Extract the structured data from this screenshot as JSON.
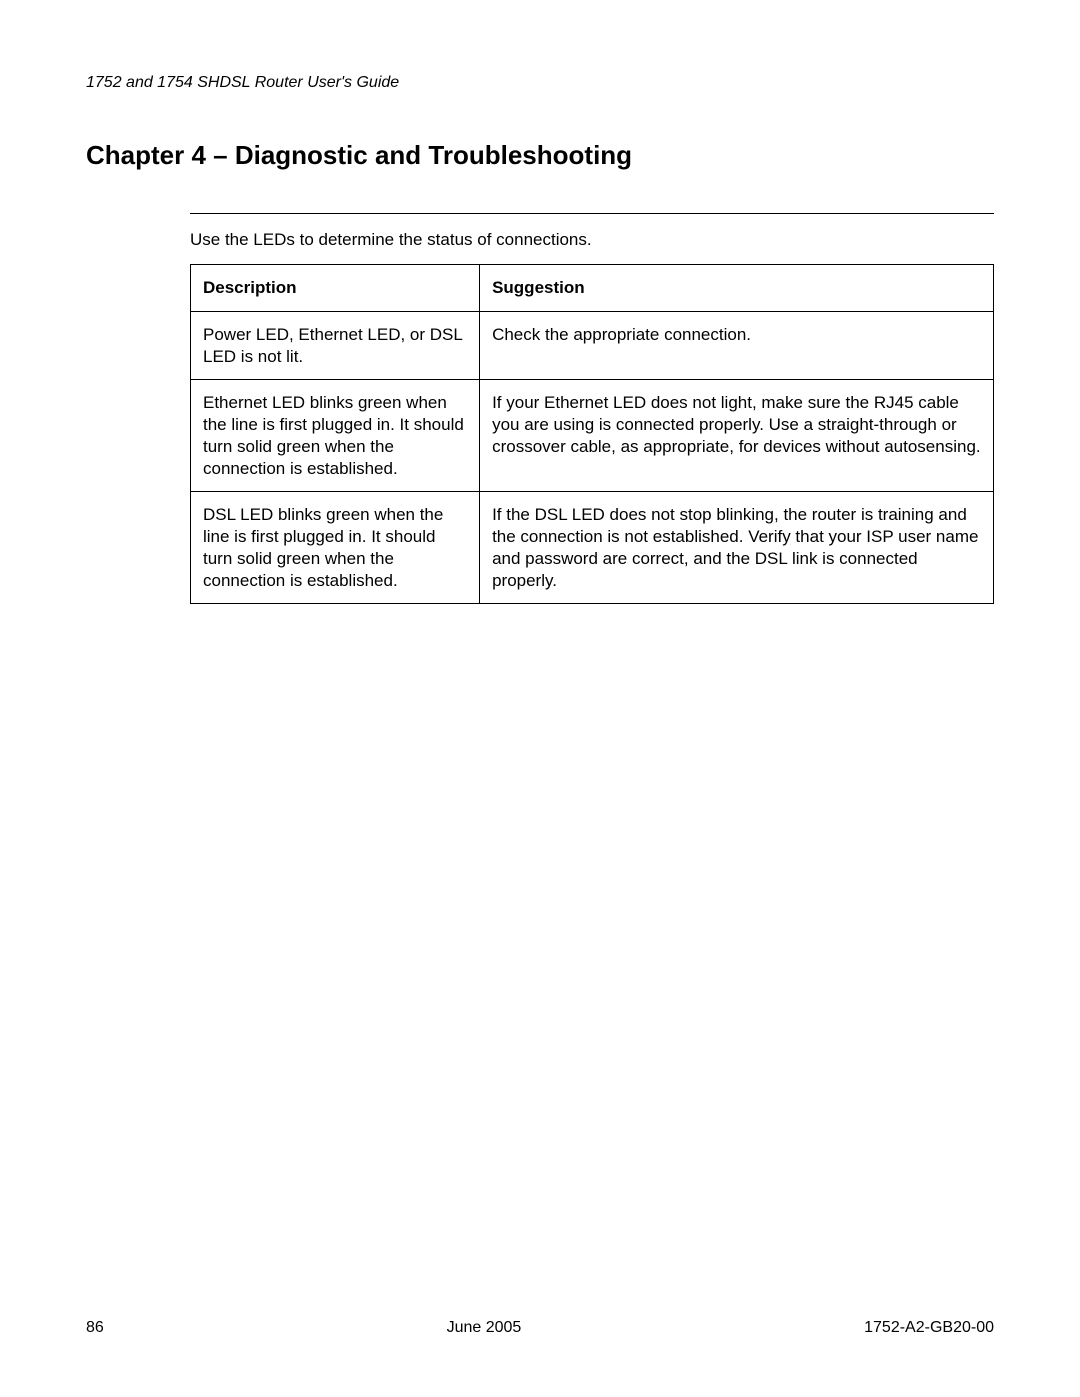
{
  "header": {
    "guide_title": "1752 and 1754 SHDSL Router User's Guide"
  },
  "chapter": {
    "title": "Chapter 4 – Diagnostic and Troubleshooting"
  },
  "intro": "Use the LEDs to determine the status of connections.",
  "table": {
    "columns": [
      "Description",
      "Suggestion"
    ],
    "rows": [
      {
        "description": "Power LED, Ethernet LED, or DSL LED is not lit.",
        "suggestion": "Check the appropriate connection."
      },
      {
        "description": "Ethernet LED blinks green when the line is first plugged in. It should turn solid green when the connection is established.",
        "suggestion": "If your Ethernet LED does not light, make sure the RJ45 cable you are using is connected properly. Use a straight-through or crossover cable, as appropriate, for devices without autosensing."
      },
      {
        "description": "DSL LED blinks green when the line is first plugged in. It should turn solid green when the connection is established.",
        "suggestion": "If the DSL LED does not stop blinking, the router is training and the connection is not established. Verify that your ISP user name and password are correct, and the DSL link is connected properly."
      }
    ]
  },
  "footer": {
    "page_number": "86",
    "date": "June 2005",
    "doc_id": "1752-A2-GB20-00"
  }
}
